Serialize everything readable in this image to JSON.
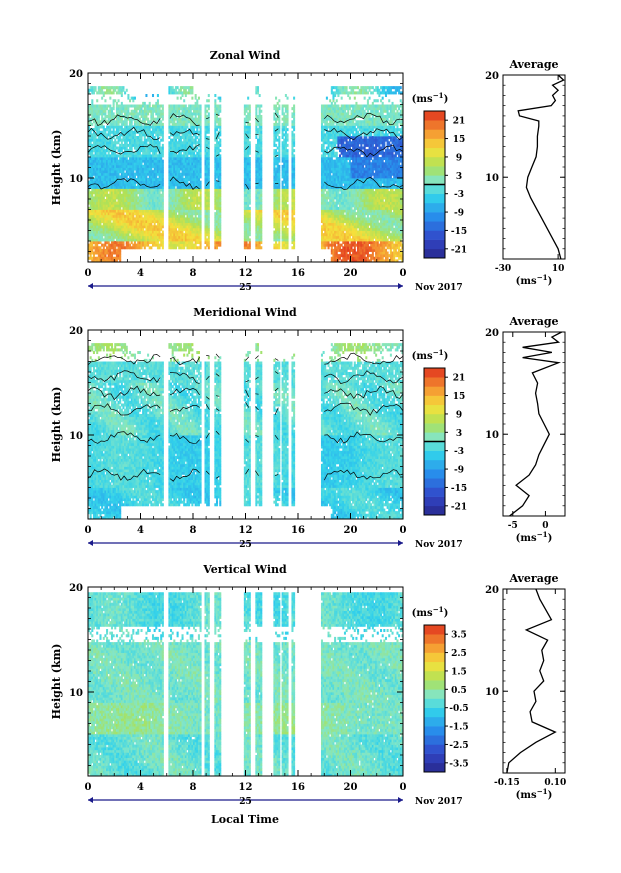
{
  "figure": {
    "xlabel": "Local Time",
    "date_label": "Nov 2017",
    "day_label": "25"
  },
  "chart_data": [
    {
      "id": "zonal",
      "type": "heatmap",
      "title": "Zonal Wind",
      "ylabel": "Height (km)",
      "xlabel": "Local Time",
      "x_ticks": [
        "0",
        "4",
        "8",
        "12",
        "16",
        "20",
        "0"
      ],
      "x_range": [
        0,
        24
      ],
      "y_ticks": [
        "10",
        "20"
      ],
      "y_range": [
        2,
        20
      ],
      "colorbar": {
        "unit": "(ms⁻¹)",
        "ticks": [
          "21",
          "15",
          "9",
          "3",
          "-3",
          "-9",
          "-15",
          "-21"
        ],
        "range": [
          -24,
          24
        ]
      },
      "gaps_hours": [
        [
          5.7,
          6.1
        ],
        [
          8.6,
          8.9
        ],
        [
          9.3,
          9.6
        ],
        [
          10.1,
          11.9
        ],
        [
          12.4,
          12.7
        ],
        [
          13.2,
          14.1
        ],
        [
          14.6,
          14.8
        ],
        [
          15.2,
          15.5
        ],
        [
          15.7,
          17.8
        ]
      ],
      "profile": {
        "title": "Average",
        "x_ticks": [
          "-30",
          "10"
        ],
        "x_range": [
          -30,
          15
        ],
        "xlabel": "(ms⁻¹)",
        "y_ticks": [
          "10",
          "20"
        ],
        "heights": [
          2,
          3,
          4,
          5,
          6,
          7,
          8,
          9,
          10,
          11,
          12,
          13,
          14,
          15,
          15.5,
          16,
          16.5,
          17,
          17.5,
          18,
          18.5,
          19,
          19.5,
          20
        ],
        "values": [
          12,
          10,
          6,
          2,
          -2,
          -6,
          -10,
          -13,
          -12,
          -9,
          -6,
          -5,
          -5,
          -4,
          -4,
          -18,
          -19,
          5,
          8,
          6,
          10,
          6,
          14,
          10
        ]
      }
    },
    {
      "id": "meridional",
      "type": "heatmap",
      "title": "Meridional Wind",
      "ylabel": "Height (km)",
      "xlabel": "Local Time",
      "x_ticks": [
        "0",
        "4",
        "8",
        "12",
        "16",
        "20",
        "0"
      ],
      "x_range": [
        0,
        24
      ],
      "y_ticks": [
        "10",
        "20"
      ],
      "y_range": [
        2,
        20
      ],
      "colorbar": {
        "unit": "(ms⁻¹)",
        "ticks": [
          "21",
          "15",
          "9",
          "3",
          "-3",
          "-9",
          "-15",
          "-21"
        ],
        "range": [
          -24,
          24
        ]
      },
      "gaps_hours": [
        [
          5.7,
          6.1
        ],
        [
          8.6,
          8.9
        ],
        [
          9.3,
          9.6
        ],
        [
          10.1,
          11.9
        ],
        [
          12.4,
          12.7
        ],
        [
          13.2,
          14.1
        ],
        [
          14.6,
          14.8
        ],
        [
          15.2,
          15.5
        ],
        [
          15.7,
          17.8
        ]
      ],
      "profile": {
        "title": "Average",
        "x_ticks": [
          "-5",
          "0"
        ],
        "x_range": [
          -6.5,
          3
        ],
        "xlabel": "(ms⁻¹)",
        "y_ticks": [
          "10",
          "20"
        ],
        "heights": [
          2,
          3,
          4,
          5,
          6,
          7,
          8,
          9,
          10,
          11,
          12,
          13,
          14,
          15,
          16,
          17,
          17.5,
          18,
          18.5,
          19,
          19.5,
          20
        ],
        "values": [
          -5.5,
          -3.5,
          -2.5,
          -4.5,
          -2.5,
          -1.5,
          -1.0,
          -0.2,
          0.6,
          -0.2,
          -1.0,
          -1.2,
          -1.5,
          -1.2,
          -2.0,
          2.0,
          -3.5,
          1.0,
          -3.5,
          2.0,
          1.0,
          2.5
        ]
      }
    },
    {
      "id": "vertical",
      "type": "heatmap",
      "title": "Vertical Wind",
      "ylabel": "Height (km)",
      "xlabel": "Local Time",
      "x_ticks": [
        "0",
        "4",
        "8",
        "12",
        "16",
        "20",
        "0"
      ],
      "x_range": [
        0,
        24
      ],
      "y_ticks": [
        "10",
        "20"
      ],
      "y_range": [
        2,
        20
      ],
      "colorbar": {
        "unit": "(ms⁻¹)",
        "ticks": [
          "3.5",
          "2.5",
          "1.5",
          "0.5",
          "-0.5",
          "-1.5",
          "-2.5",
          "-3.5"
        ],
        "range": [
          -4,
          4
        ]
      },
      "gaps_hours": [
        [
          5.7,
          6.1
        ],
        [
          8.6,
          8.9
        ],
        [
          9.3,
          9.6
        ],
        [
          10.1,
          11.9
        ],
        [
          12.4,
          12.7
        ],
        [
          13.2,
          14.1
        ],
        [
          14.6,
          14.8
        ],
        [
          15.2,
          15.5
        ],
        [
          15.7,
          17.8
        ]
      ],
      "profile": {
        "title": "Average",
        "x_ticks": [
          "-0.15",
          "0.10"
        ],
        "x_range": [
          -0.17,
          0.15
        ],
        "xlabel": "(ms⁻¹)",
        "y_ticks": [
          "10",
          "20"
        ],
        "heights": [
          2,
          3,
          4,
          5,
          6,
          7,
          8,
          9,
          10,
          11,
          12,
          13,
          14,
          15,
          16,
          17,
          18,
          19,
          20
        ],
        "values": [
          -0.15,
          -0.14,
          -0.08,
          0.0,
          0.1,
          -0.02,
          -0.03,
          0.0,
          -0.01,
          0.04,
          0.02,
          0.04,
          0.03,
          0.06,
          -0.05,
          0.08,
          0.05,
          0.02,
          0.0
        ]
      }
    }
  ]
}
